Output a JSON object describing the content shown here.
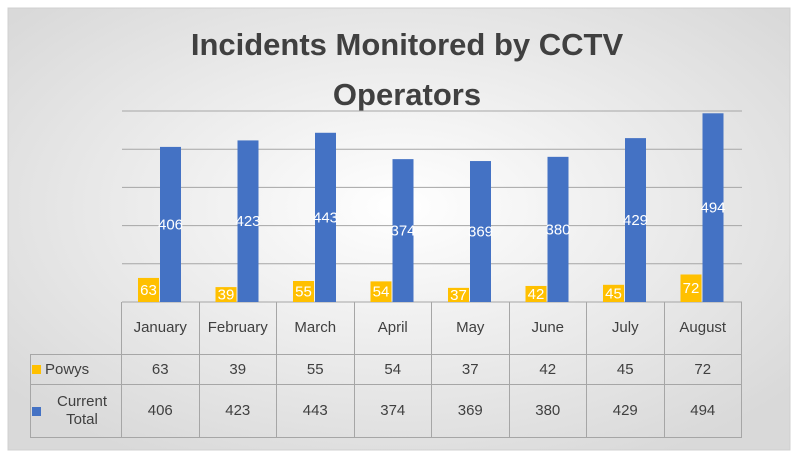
{
  "chart_data": {
    "type": "bar",
    "title": "Incidents Monitored by CCTV Operators",
    "categories": [
      "January",
      "February",
      "March",
      "April",
      "May",
      "June",
      "July",
      "August"
    ],
    "series": [
      {
        "name": "Powys",
        "color": "#ffc000",
        "values": [
          63,
          39,
          55,
          54,
          37,
          42,
          45,
          72
        ]
      },
      {
        "name": "Current Total",
        "color": "#4472c4",
        "values": [
          406,
          423,
          443,
          374,
          369,
          380,
          429,
          494
        ]
      }
    ],
    "ylim": [
      0,
      500
    ],
    "yticks": [
      0,
      100,
      200,
      300,
      400,
      500
    ],
    "grid": true
  }
}
